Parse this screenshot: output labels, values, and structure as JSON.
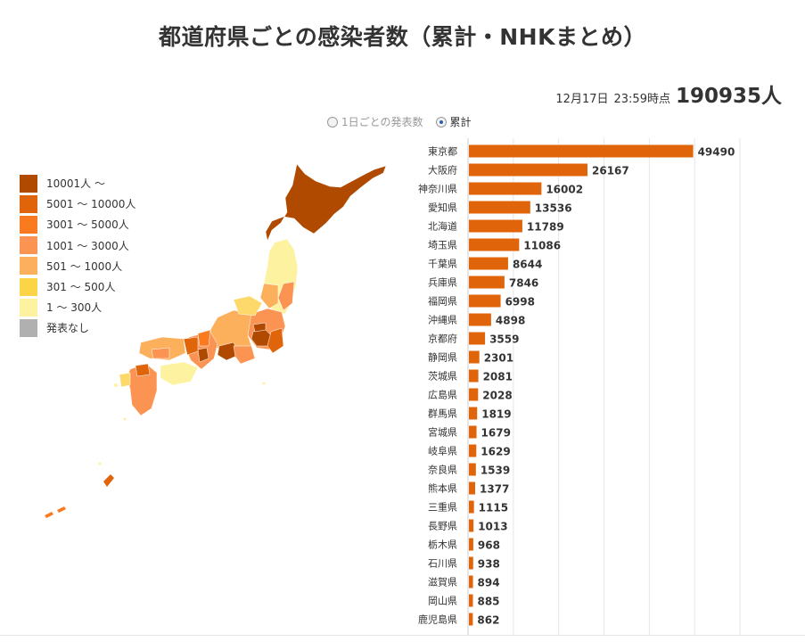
{
  "title": "都道府県ごとの感染者数（累計・NHKまとめ）",
  "header": {
    "date": "12月17日",
    "time": "23:59時点",
    "total": "190935人"
  },
  "toggle": {
    "options": [
      {
        "label": "1日ごとの発表数",
        "selected": false
      },
      {
        "label": "累計",
        "selected": true
      }
    ]
  },
  "legend": [
    {
      "label": "10001人 ～",
      "color": "#b04a00"
    },
    {
      "label": "5001 ～ 10000人",
      "color": "#e0650a"
    },
    {
      "label": "3001 ～ 5000人",
      "color": "#fa7a1f"
    },
    {
      "label": "1001 ～ 3000人",
      "color": "#fb9453"
    },
    {
      "label": "501 ～ 1000人",
      "color": "#fdb05c"
    },
    {
      "label": "301 ～ 500人",
      "color": "#fbd448"
    },
    {
      "label": "1 ～ 300人",
      "color": "#fdf2a0"
    },
    {
      "label": "発表なし",
      "color": "#b0b0b0"
    }
  ],
  "colors": {
    "bar": "#e0650a",
    "grid": "#e6e6e6",
    "axis": "#cccccc"
  },
  "chart_data": {
    "type": "bar",
    "orientation": "horizontal",
    "title": "",
    "xlabel": "",
    "ylabel": "",
    "xlim": [
      0,
      60000
    ],
    "grid": true,
    "categories": [
      "東京都",
      "大阪府",
      "神奈川県",
      "愛知県",
      "北海道",
      "埼玉県",
      "千葉県",
      "兵庫県",
      "福岡県",
      "沖縄県",
      "京都府",
      "静岡県",
      "茨城県",
      "広島県",
      "群馬県",
      "宮城県",
      "岐阜県",
      "奈良県",
      "熊本県",
      "三重県",
      "長野県",
      "栃木県",
      "石川県",
      "滋賀県",
      "岡山県",
      "鹿児島県"
    ],
    "values": [
      49490,
      26167,
      16002,
      13536,
      11789,
      11086,
      8644,
      7846,
      6998,
      4898,
      3559,
      2301,
      2081,
      2028,
      1819,
      1679,
      1629,
      1539,
      1377,
      1115,
      1013,
      968,
      938,
      894,
      885,
      862
    ]
  }
}
